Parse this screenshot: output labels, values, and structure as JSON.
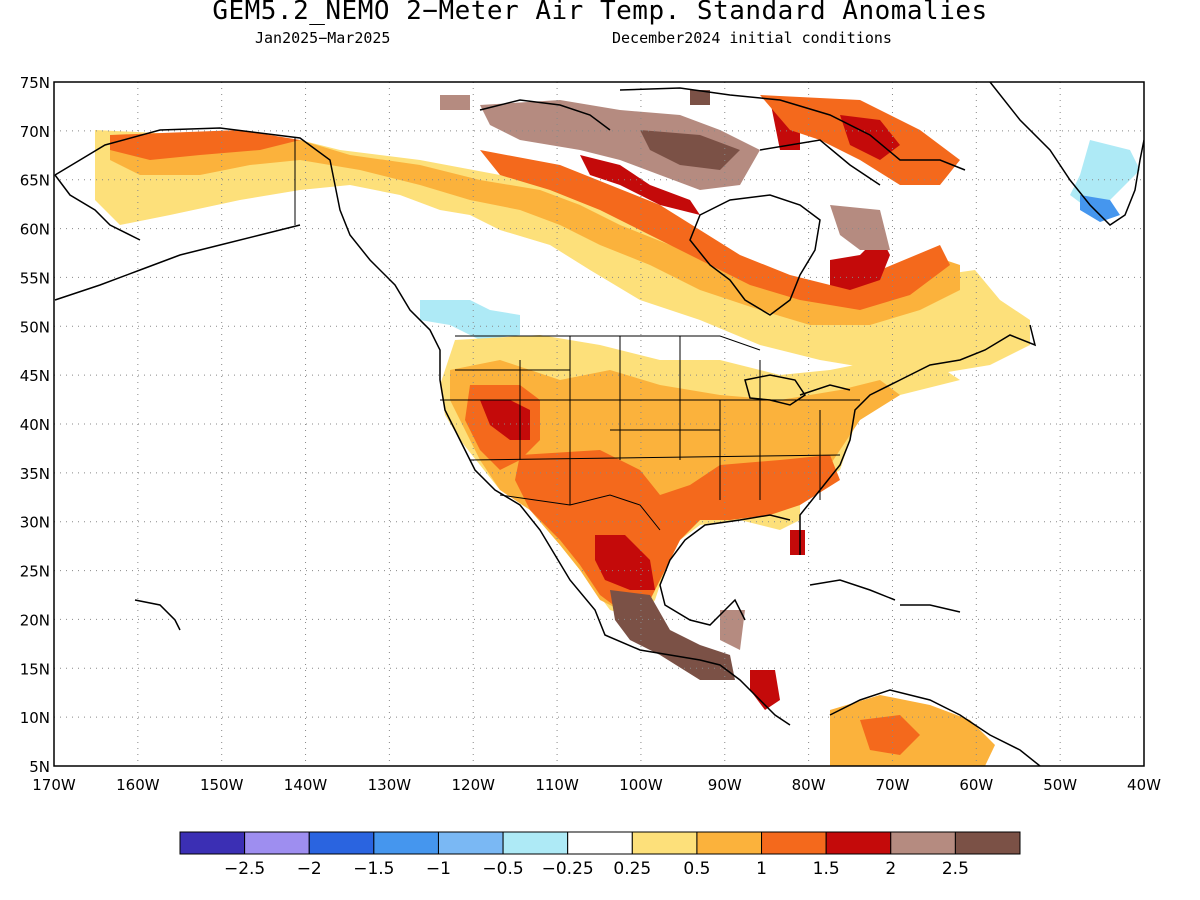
{
  "title": "GEM5.2_NEMO 2−Meter Air Temp. Standard Anomalies",
  "period": "Jan2025−Mar2025",
  "initial_conditions": "December2024 initial conditions",
  "lat_labels": [
    "75N",
    "70N",
    "65N",
    "60N",
    "55N",
    "50N",
    "45N",
    "40N",
    "35N",
    "30N",
    "25N",
    "20N",
    "15N",
    "10N",
    "5N"
  ],
  "lon_labels": [
    "170W",
    "160W",
    "150W",
    "140W",
    "130W",
    "120W",
    "110W",
    "100W",
    "90W",
    "80W",
    "70W",
    "60W",
    "50W",
    "40W"
  ],
  "legend": {
    "colors": [
      "#3b2fb4",
      "#9e8ef0",
      "#2a64e0",
      "#4596ee",
      "#7ab8f4",
      "#aeeaf6",
      "#ffffff",
      "#fde07a",
      "#fbb23c",
      "#f4691c",
      "#c40a0a",
      "#b58b80",
      "#7b5146"
    ],
    "labels": [
      "−2.5",
      "−2",
      "−1.5",
      "−1",
      "−0.5",
      "−0.25",
      "0.25",
      "0.5",
      "1",
      "1.5",
      "2",
      "2.5"
    ]
  }
}
